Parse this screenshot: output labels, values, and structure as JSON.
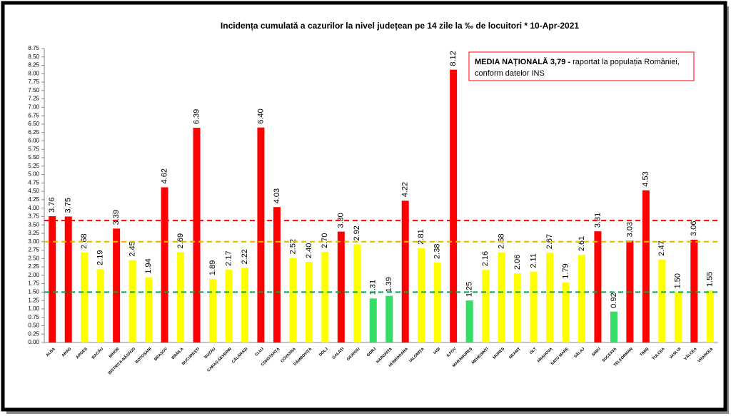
{
  "chart_data": {
    "type": "bar",
    "title": "Incidența cumulată a cazurilor la nivel județean pe 14 zile la ‰ de locuitori *   10-Apr-2021",
    "annotation": {
      "bold": "MEDIA NAȚIONALĂ  3,79 -",
      "text": " raportat la populația României,",
      "text2": "conform datelor INS",
      "color": "#ff0000"
    },
    "categories": [
      "ALBA",
      "ARAD",
      "ARGEȘ",
      "BACĂU",
      "BIHOR",
      "BISTRIȚA-NĂSĂUD",
      "BOTOȘANI",
      "BRAȘOV",
      "BRĂILA",
      "BUCUREȘTI",
      "BUZĂU",
      "CARAȘ-SEVERIN",
      "CĂLĂRAȘI",
      "CLUJ",
      "CONSTANȚA",
      "COVASNA",
      "DÂMBOVIȚA",
      "DOLJ",
      "GALAȚI",
      "GIURGIU",
      "GORJ",
      "HARGHITA",
      "HUNEDOARA",
      "IALOMIȚA",
      "IAȘI",
      "ILFOV",
      "MARAMUREȘ",
      "MEHEDINȚI",
      "MUREȘ",
      "NEAMȚ",
      "OLT",
      "PRAHOVA",
      "SATU MARE",
      "SĂLAJ",
      "SIBIU",
      "SUCEAVA",
      "TELEORMAN",
      "TIMIȘ",
      "TULCEA",
      "VASLUI",
      "VÂLCEA",
      "VRANCEA"
    ],
    "values": [
      3.76,
      3.75,
      2.68,
      2.19,
      3.39,
      2.45,
      1.94,
      4.62,
      2.69,
      6.39,
      1.89,
      2.17,
      2.22,
      6.4,
      4.03,
      2.52,
      2.4,
      2.7,
      3.3,
      2.92,
      1.31,
      1.39,
      4.22,
      2.81,
      2.38,
      8.12,
      1.25,
      2.16,
      2.68,
      2.06,
      2.11,
      2.67,
      1.79,
      2.61,
      3.31,
      0.92,
      3.03,
      4.53,
      2.47,
      1.5,
      3.06,
      1.55
    ],
    "value_labels": [
      "3.76",
      "3.75",
      "2.68",
      "2.19",
      "3.39",
      "2.45",
      "1.94",
      "4.62",
      "2.69",
      "6.39",
      "1.89",
      "2.17",
      "2.22",
      "6.40",
      "4.03",
      "2.52",
      "2.40",
      "2.70",
      "3.30",
      "2.92",
      "1.31",
      "1.39",
      "4.22",
      "2.81",
      "2.38",
      "8.12",
      "1.25",
      "2.16",
      "2.68",
      "2.06",
      "2.11",
      "2.67",
      "1.79",
      "2.61",
      "3.31",
      "0.92",
      "3.03",
      "4.53",
      "2.47",
      "1.50",
      "3.06",
      "1.55"
    ],
    "colors": [
      "#ff0000",
      "#ff0000",
      "#ffff00",
      "#ffff00",
      "#ff0000",
      "#ffff00",
      "#ffff00",
      "#ff0000",
      "#ffff00",
      "#ff0000",
      "#ffff00",
      "#ffff00",
      "#ffff00",
      "#ff0000",
      "#ff0000",
      "#ffff00",
      "#ffff00",
      "#ffff00",
      "#ff0000",
      "#ffff00",
      "#33dd66",
      "#33dd66",
      "#ff0000",
      "#ffff00",
      "#ffff00",
      "#ff0000",
      "#33dd66",
      "#ffff00",
      "#ffff00",
      "#ffff00",
      "#ffff00",
      "#ffff00",
      "#ffff00",
      "#ffff00",
      "#ff0000",
      "#33dd66",
      "#ff0000",
      "#ff0000",
      "#ffff00",
      "#ffff00",
      "#ff0000",
      "#ffff00"
    ],
    "reference_lines": [
      {
        "value": 3.63,
        "color": "#ff0000"
      },
      {
        "value": 3.0,
        "color": "#e6b800"
      },
      {
        "value": 1.5,
        "color": "#00a650"
      }
    ],
    "ylim": [
      0,
      8.75
    ],
    "yticks": [
      {
        "value": 0,
        "label": "0.00"
      },
      {
        "value": 0.25,
        "label": "0.25"
      },
      {
        "value": 0.5,
        "label": "0.50"
      },
      {
        "value": 0.75,
        "label": "0.75"
      },
      {
        "value": 1,
        "label": "1.00"
      },
      {
        "value": 1.25,
        "label": "1.25"
      },
      {
        "value": 1.5,
        "label": "1.50"
      },
      {
        "value": 1.75,
        "label": "1.75"
      },
      {
        "value": 2,
        "label": "2.00"
      },
      {
        "value": 2.25,
        "label": "2.25"
      },
      {
        "value": 2.5,
        "label": "2.50"
      },
      {
        "value": 2.75,
        "label": "2.75"
      },
      {
        "value": 3,
        "label": "3.00"
      },
      {
        "value": 3.25,
        "label": "3.25"
      },
      {
        "value": 3.5,
        "label": "3.50"
      },
      {
        "value": 3.75,
        "label": "3.75"
      },
      {
        "value": 4,
        "label": "4.00"
      },
      {
        "value": 4.25,
        "label": "4.25"
      },
      {
        "value": 4.5,
        "label": "4.50"
      },
      {
        "value": 4.75,
        "label": "4.75"
      },
      {
        "value": 5,
        "label": "5.00"
      },
      {
        "value": 5.25,
        "label": "5.25"
      },
      {
        "value": 5.5,
        "label": "5.50"
      },
      {
        "value": 5.75,
        "label": "5.75"
      },
      {
        "value": 6,
        "label": "6.00"
      },
      {
        "value": 6.25,
        "label": "6.25"
      },
      {
        "value": 6.5,
        "label": "6.50"
      },
      {
        "value": 6.75,
        "label": "6.75"
      },
      {
        "value": 7,
        "label": "7.00"
      },
      {
        "value": 7.25,
        "label": "7.25"
      },
      {
        "value": 7.5,
        "label": "7.50"
      },
      {
        "value": 7.75,
        "label": "7.75"
      },
      {
        "value": 8,
        "label": "8.00"
      },
      {
        "value": 8.25,
        "label": "8.25"
      },
      {
        "value": 8.5,
        "label": "8.50"
      },
      {
        "value": 8.75,
        "label": "8.75"
      }
    ],
    "grid": false
  }
}
